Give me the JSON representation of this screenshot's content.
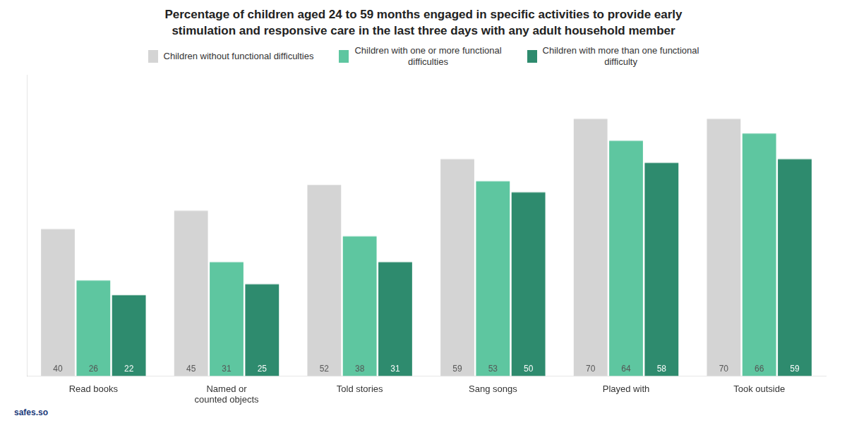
{
  "chart_data": {
    "type": "bar",
    "title": "Percentage of children aged 24 to 59 months engaged in specific activities to provide early\nstimulation and responsive care in the last three days with any adult household member",
    "categories": [
      "Read books",
      "Named or\ncounted objects",
      "Told stories",
      "Sang songs",
      "Played with",
      "Took outside"
    ],
    "series": [
      {
        "name": "Children without functional difficulties",
        "color": "#d4d4d4",
        "values": [
          40,
          45,
          52,
          59,
          70,
          70
        ]
      },
      {
        "name": "Children with one or more functional\ndifficulties",
        "color": "#5ec6a0",
        "values": [
          26,
          31,
          38,
          53,
          64,
          66
        ]
      },
      {
        "name": "Children with more than one functional\ndifficulty",
        "color": "#2e8b6e",
        "values": [
          22,
          25,
          31,
          50,
          58,
          59
        ]
      }
    ],
    "ylim": [
      0,
      82
    ],
    "grid": false,
    "legend": "top",
    "data_labels": true,
    "tick_labels": "x",
    "annotations": [
      "safes.so"
    ]
  }
}
